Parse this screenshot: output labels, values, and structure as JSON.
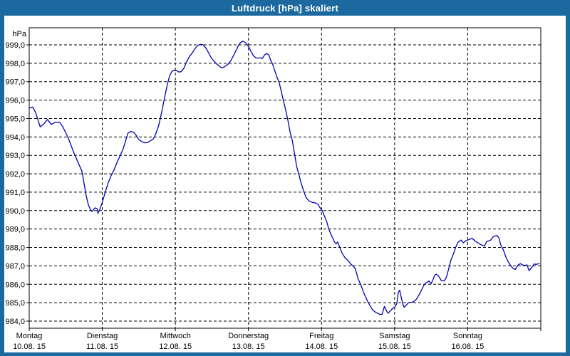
{
  "window": {
    "title": "Luftdruck [hPa] skaliert",
    "titlebar_color": "#1b699f",
    "frame_color": "#1b699f",
    "background": "#ffffff"
  },
  "chart_data": {
    "type": "line",
    "title": "Luftdruck [hPa] skaliert",
    "ylabel": "hPa",
    "xlabel": "",
    "grid": true,
    "grid_style": "dashed",
    "legend": "none",
    "line_color": "#0000b4",
    "axis_color": "#000000",
    "ylim": [
      983.6,
      999.95
    ],
    "x_range_days": 7,
    "y_ticks": [
      {
        "value": 999,
        "label": "999,0"
      },
      {
        "value": 998,
        "label": "998,0"
      },
      {
        "value": 997,
        "label": "997,0"
      },
      {
        "value": 996,
        "label": "996,0"
      },
      {
        "value": 995,
        "label": "995,0"
      },
      {
        "value": 994,
        "label": "994,0"
      },
      {
        "value": 993,
        "label": "993,0"
      },
      {
        "value": 992,
        "label": "992,0"
      },
      {
        "value": 991,
        "label": "991,0"
      },
      {
        "value": 990,
        "label": "990,0"
      },
      {
        "value": 989,
        "label": "989,0"
      },
      {
        "value": 988,
        "label": "988,0"
      },
      {
        "value": 987,
        "label": "987,0"
      },
      {
        "value": 986,
        "label": "986,0"
      },
      {
        "value": 985,
        "label": "985,0"
      },
      {
        "value": 984,
        "label": "984,0"
      }
    ],
    "x_ticks": [
      {
        "day": "Montag",
        "date": "10.08. 15"
      },
      {
        "day": "Dienstag",
        "date": "11.08. 15"
      },
      {
        "day": "Mittwoch",
        "date": "12.08. 15"
      },
      {
        "day": "Donnerstag",
        "date": "13.08. 15"
      },
      {
        "day": "Freitag",
        "date": "14.08. 15"
      },
      {
        "day": "Samstag",
        "date": "15.08. 15"
      },
      {
        "day": "Sonntag",
        "date": "16.08. 15"
      }
    ],
    "series": [
      {
        "name": "Luftdruck",
        "unit": "hPa",
        "points": [
          [
            0,
            995.57
          ],
          [
            0.05,
            995.62
          ],
          [
            0.09,
            995.3
          ],
          [
            0.15,
            994.55
          ],
          [
            0.2,
            994.7
          ],
          [
            0.25,
            994.95
          ],
          [
            0.3,
            994.68
          ],
          [
            0.36,
            994.8
          ],
          [
            0.42,
            994.78
          ],
          [
            0.46,
            994.55
          ],
          [
            0.53,
            993.98
          ],
          [
            0.62,
            993.05
          ],
          [
            0.72,
            992.15
          ],
          [
            0.75,
            991.5
          ],
          [
            0.78,
            990.8
          ],
          [
            0.81,
            990.3
          ],
          [
            0.84,
            990.05
          ],
          [
            0.86,
            989.95
          ],
          [
            0.9,
            990.15
          ],
          [
            0.93,
            990.1
          ],
          [
            0.94,
            989.85
          ],
          [
            0.97,
            990.1
          ],
          [
            1,
            990.45
          ],
          [
            1.04,
            991
          ],
          [
            1.08,
            991.5
          ],
          [
            1.12,
            991.9
          ],
          [
            1.16,
            992.2
          ],
          [
            1.2,
            992.6
          ],
          [
            1.24,
            992.95
          ],
          [
            1.28,
            993.3
          ],
          [
            1.32,
            993.8
          ],
          [
            1.35,
            994.2
          ],
          [
            1.39,
            994.3
          ],
          [
            1.43,
            994.25
          ],
          [
            1.46,
            994.1
          ],
          [
            1.5,
            993.85
          ],
          [
            1.54,
            993.75
          ],
          [
            1.58,
            993.68
          ],
          [
            1.62,
            993.7
          ],
          [
            1.66,
            993.8
          ],
          [
            1.7,
            993.9
          ],
          [
            1.73,
            994.15
          ],
          [
            1.77,
            994.6
          ],
          [
            1.81,
            995.3
          ],
          [
            1.85,
            996.1
          ],
          [
            1.89,
            996.85
          ],
          [
            1.92,
            997.3
          ],
          [
            1.95,
            997.55
          ],
          [
            1.98,
            997.62
          ],
          [
            2.02,
            997.6
          ],
          [
            2.05,
            997.52
          ],
          [
            2.08,
            997.55
          ],
          [
            2.12,
            997.75
          ],
          [
            2.15,
            998.05
          ],
          [
            2.19,
            998.35
          ],
          [
            2.23,
            998.55
          ],
          [
            2.27,
            998.8
          ],
          [
            2.31,
            998.98
          ],
          [
            2.35,
            999.03
          ],
          [
            2.38,
            999
          ],
          [
            2.42,
            998.82
          ],
          [
            2.45,
            998.6
          ],
          [
            2.49,
            998.3
          ],
          [
            2.52,
            998.15
          ],
          [
            2.56,
            997.98
          ],
          [
            2.6,
            997.85
          ],
          [
            2.63,
            997.76
          ],
          [
            2.66,
            997.78
          ],
          [
            2.69,
            997.86
          ],
          [
            2.72,
            997.95
          ],
          [
            2.76,
            998.15
          ],
          [
            2.8,
            998.45
          ],
          [
            2.83,
            998.7
          ],
          [
            2.86,
            998.95
          ],
          [
            2.89,
            999.12
          ],
          [
            2.92,
            999.2
          ],
          [
            2.94,
            999.17
          ],
          [
            2.97,
            999.08
          ],
          [
            3.01,
            998.85
          ],
          [
            3.04,
            998.6
          ],
          [
            3.07,
            998.4
          ],
          [
            3.1,
            998.3
          ],
          [
            3.13,
            998.28
          ],
          [
            3.16,
            998.3
          ],
          [
            3.19,
            998.26
          ],
          [
            3.22,
            998.45
          ],
          [
            3.25,
            998.53
          ],
          [
            3.28,
            998.45
          ],
          [
            3.3,
            998.2
          ],
          [
            3.33,
            997.95
          ],
          [
            3.36,
            997.6
          ],
          [
            3.39,
            997.25
          ],
          [
            3.42,
            996.95
          ],
          [
            3.45,
            996.45
          ],
          [
            3.48,
            995.95
          ],
          [
            3.51,
            995.45
          ],
          [
            3.54,
            994.9
          ],
          [
            3.57,
            994.25
          ],
          [
            3.6,
            993.8
          ],
          [
            3.63,
            993.1
          ],
          [
            3.66,
            992.4
          ],
          [
            3.69,
            991.95
          ],
          [
            3.72,
            991.5
          ],
          [
            3.76,
            991
          ],
          [
            3.79,
            990.7
          ],
          [
            3.83,
            990.52
          ],
          [
            3.87,
            990.45
          ],
          [
            3.91,
            990.42
          ],
          [
            3.95,
            990.35
          ],
          [
            3.98,
            990.15
          ],
          [
            4.01,
            990
          ],
          [
            4.04,
            989.7
          ],
          [
            4.07,
            989.4
          ],
          [
            4.1,
            989
          ],
          [
            4.13,
            988.7
          ],
          [
            4.16,
            988.45
          ],
          [
            4.18,
            988.28
          ],
          [
            4.2,
            988.2
          ],
          [
            4.22,
            988.3
          ],
          [
            4.25,
            988
          ],
          [
            4.28,
            987.7
          ],
          [
            4.32,
            987.45
          ],
          [
            4.36,
            987.3
          ],
          [
            4.4,
            987.1
          ],
          [
            4.43,
            987
          ],
          [
            4.46,
            986.85
          ],
          [
            4.48,
            986.6
          ],
          [
            4.5,
            986.3
          ],
          [
            4.54,
            985.95
          ],
          [
            4.57,
            985.6
          ],
          [
            4.6,
            985.35
          ],
          [
            4.64,
            985
          ],
          [
            4.67,
            984.8
          ],
          [
            4.7,
            984.6
          ],
          [
            4.74,
            984.48
          ],
          [
            4.77,
            984.42
          ],
          [
            4.8,
            984.36
          ],
          [
            4.83,
            984.38
          ],
          [
            4.86,
            984.8
          ],
          [
            4.89,
            984.55
          ],
          [
            4.91,
            984.42
          ],
          [
            4.94,
            984.55
          ],
          [
            4.97,
            984.68
          ],
          [
            5,
            984.75
          ],
          [
            5.03,
            984.95
          ],
          [
            5.05,
            985.55
          ],
          [
            5.07,
            985.68
          ],
          [
            5.09,
            985.3
          ],
          [
            5.11,
            984.95
          ],
          [
            5.13,
            984.75
          ],
          [
            5.16,
            984.87
          ],
          [
            5.19,
            985
          ],
          [
            5.23,
            985.02
          ],
          [
            5.26,
            985.05
          ],
          [
            5.3,
            985.2
          ],
          [
            5.33,
            985.4
          ],
          [
            5.37,
            985.7
          ],
          [
            5.4,
            985.95
          ],
          [
            5.43,
            986.08
          ],
          [
            5.47,
            986.18
          ],
          [
            5.5,
            986.03
          ],
          [
            5.53,
            986.3
          ],
          [
            5.55,
            986.5
          ],
          [
            5.57,
            986.55
          ],
          [
            5.6,
            986.45
          ],
          [
            5.64,
            986.2
          ],
          [
            5.68,
            986.18
          ],
          [
            5.71,
            986.4
          ],
          [
            5.74,
            986.85
          ],
          [
            5.77,
            987.3
          ],
          [
            5.81,
            987.7
          ],
          [
            5.84,
            988.05
          ],
          [
            5.87,
            988.3
          ],
          [
            5.91,
            988.4
          ],
          [
            5.94,
            988.25
          ],
          [
            5.97,
            988.35
          ],
          [
            6.01,
            988.42
          ],
          [
            6.04,
            988.46
          ],
          [
            6.06,
            988.5
          ],
          [
            6.1,
            988.35
          ],
          [
            6.13,
            988.28
          ],
          [
            6.16,
            988.2
          ],
          [
            6.2,
            988.12
          ],
          [
            6.23,
            988.07
          ],
          [
            6.26,
            988.33
          ],
          [
            6.31,
            988.38
          ],
          [
            6.35,
            988.58
          ],
          [
            6.38,
            988.63
          ],
          [
            6.4,
            988.65
          ],
          [
            6.43,
            988.5
          ],
          [
            6.45,
            988.16
          ],
          [
            6.49,
            987.85
          ],
          [
            6.52,
            987.5
          ],
          [
            6.55,
            987.25
          ],
          [
            6.59,
            987
          ],
          [
            6.62,
            986.87
          ],
          [
            6.65,
            986.8
          ],
          [
            6.69,
            987.05
          ],
          [
            6.72,
            987.12
          ],
          [
            6.75,
            987.05
          ],
          [
            6.79,
            987.02
          ],
          [
            6.81,
            987.06
          ],
          [
            6.84,
            986.74
          ],
          [
            6.88,
            986.93
          ],
          [
            6.91,
            987.1
          ],
          [
            6.94,
            987.08
          ],
          [
            6.98,
            987.12
          ]
        ]
      }
    ]
  }
}
